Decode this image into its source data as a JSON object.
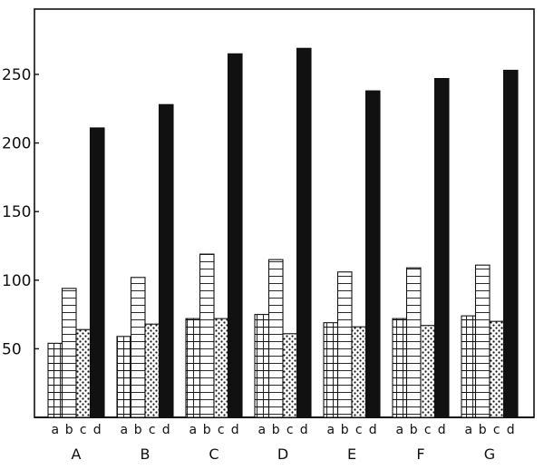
{
  "colors": {
    "ink": "#111111",
    "background": "#ffffff"
  },
  "chart_data": {
    "type": "bar",
    "categories": [
      "A",
      "B",
      "C",
      "D",
      "E",
      "F",
      "G"
    ],
    "sub_categories": [
      "a",
      "b",
      "c",
      "d"
    ],
    "series": [
      {
        "name": "a",
        "fill": "grid",
        "values": [
          54,
          59,
          72,
          75,
          69,
          72,
          74
        ]
      },
      {
        "name": "b",
        "fill": "horizontal-lines",
        "values": [
          94,
          102,
          119,
          115,
          106,
          109,
          111
        ]
      },
      {
        "name": "c",
        "fill": "dots",
        "values": [
          64,
          68,
          72,
          61,
          66,
          67,
          70
        ]
      },
      {
        "name": "d",
        "fill": "solid-black",
        "values": [
          211,
          228,
          265,
          269,
          238,
          247,
          253
        ]
      }
    ],
    "yticks": [
      50,
      100,
      150,
      200,
      250
    ],
    "ylim": [
      0,
      300
    ],
    "title": "",
    "xlabel": "",
    "ylabel": "",
    "grid": false,
    "legend": "none"
  }
}
